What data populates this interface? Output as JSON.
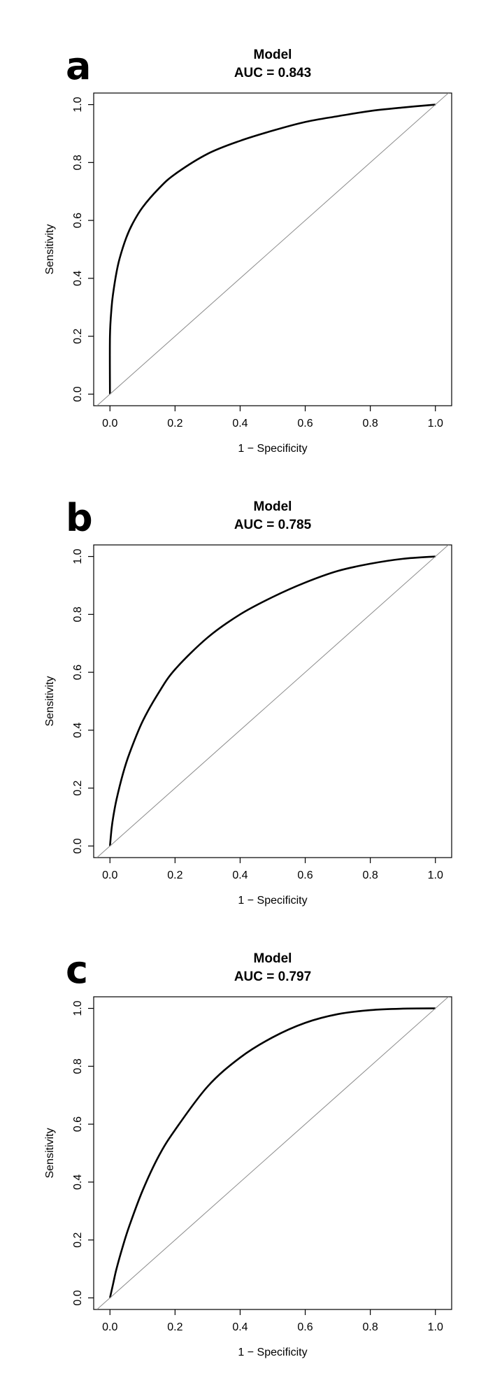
{
  "figure": {
    "panels": [
      {
        "letter": "a"
      },
      {
        "letter": "b"
      },
      {
        "letter": "c"
      }
    ]
  },
  "chart_data": [
    {
      "type": "line",
      "title": "Model",
      "subtitle": "AUC = 0.843",
      "xlabel": "1 − Specificity",
      "ylabel": "Sensitivity",
      "xlim": [
        -0.05,
        1.05
      ],
      "ylim": [
        -0.04,
        1.04
      ],
      "xticks": [
        0.0,
        0.2,
        0.4,
        0.6,
        0.8,
        1.0
      ],
      "yticks": [
        0.0,
        0.2,
        0.4,
        0.6,
        0.8,
        1.0
      ],
      "tick_labels": [
        "0.0",
        "0.2",
        "0.4",
        "0.6",
        "0.8",
        "1.0"
      ],
      "grid": false,
      "series": [
        {
          "style": "roc-curve",
          "x": [
            0.0,
            0.0,
            0.005,
            0.01,
            0.02,
            0.03,
            0.05,
            0.07,
            0.1,
            0.15,
            0.2,
            0.3,
            0.4,
            0.5,
            0.6,
            0.7,
            0.8,
            0.9,
            1.0
          ],
          "y": [
            0.0,
            0.2,
            0.3,
            0.35,
            0.42,
            0.47,
            0.54,
            0.59,
            0.645,
            0.71,
            0.76,
            0.83,
            0.875,
            0.91,
            0.94,
            0.96,
            0.978,
            0.99,
            1.0
          ]
        },
        {
          "style": "reference-diagonal",
          "x": [
            0.0,
            1.0
          ],
          "y": [
            0.0,
            1.0
          ]
        }
      ]
    },
    {
      "type": "line",
      "title": "Model",
      "subtitle": "AUC = 0.785",
      "xlabel": "1 − Specificity",
      "ylabel": "Sensitivity",
      "xlim": [
        -0.05,
        1.05
      ],
      "ylim": [
        -0.04,
        1.04
      ],
      "xticks": [
        0.0,
        0.2,
        0.4,
        0.6,
        0.8,
        1.0
      ],
      "yticks": [
        0.0,
        0.2,
        0.4,
        0.6,
        0.8,
        1.0
      ],
      "tick_labels": [
        "0.0",
        "0.2",
        "0.4",
        "0.6",
        "0.8",
        "1.0"
      ],
      "grid": false,
      "series": [
        {
          "style": "roc-curve",
          "x": [
            0.0,
            0.005,
            0.01,
            0.02,
            0.04,
            0.06,
            0.1,
            0.15,
            0.2,
            0.3,
            0.4,
            0.5,
            0.6,
            0.7,
            0.8,
            0.9,
            1.0
          ],
          "y": [
            0.0,
            0.06,
            0.1,
            0.16,
            0.25,
            0.32,
            0.43,
            0.53,
            0.61,
            0.72,
            0.8,
            0.86,
            0.91,
            0.95,
            0.975,
            0.992,
            1.0
          ]
        },
        {
          "style": "reference-diagonal",
          "x": [
            0.0,
            1.0
          ],
          "y": [
            0.0,
            1.0
          ]
        }
      ]
    },
    {
      "type": "line",
      "title": "Model",
      "subtitle": "AUC = 0.797",
      "xlabel": "1 − Specificity",
      "ylabel": "Sensitivity",
      "xlim": [
        -0.05,
        1.05
      ],
      "ylim": [
        -0.04,
        1.04
      ],
      "xticks": [
        0.0,
        0.2,
        0.4,
        0.6,
        0.8,
        1.0
      ],
      "yticks": [
        0.0,
        0.2,
        0.4,
        0.6,
        0.8,
        1.0
      ],
      "tick_labels": [
        "0.0",
        "0.2",
        "0.4",
        "0.6",
        "0.8",
        "1.0"
      ],
      "grid": false,
      "series": [
        {
          "style": "roc-curve",
          "x": [
            0.0,
            0.01,
            0.02,
            0.04,
            0.06,
            0.1,
            0.15,
            0.2,
            0.3,
            0.4,
            0.5,
            0.6,
            0.7,
            0.8,
            0.9,
            1.0
          ],
          "y": [
            0.0,
            0.05,
            0.1,
            0.18,
            0.25,
            0.37,
            0.49,
            0.58,
            0.73,
            0.83,
            0.9,
            0.95,
            0.98,
            0.994,
            0.999,
            1.0
          ]
        },
        {
          "style": "reference-diagonal",
          "x": [
            0.0,
            1.0
          ],
          "y": [
            0.0,
            1.0
          ]
        }
      ]
    }
  ]
}
